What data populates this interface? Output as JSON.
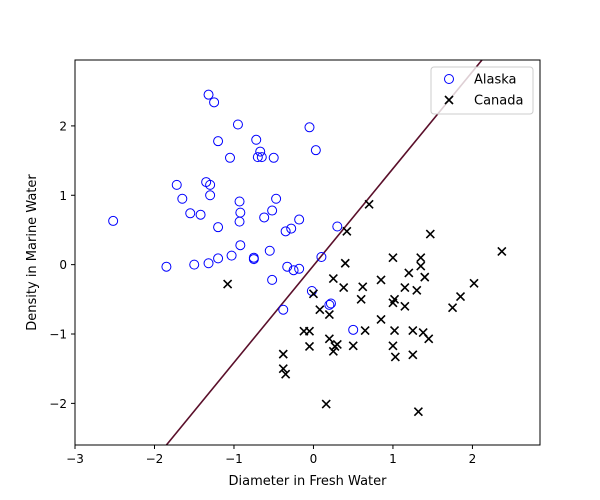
{
  "chart_data": {
    "type": "scatter",
    "xlabel": "Diameter in Fresh Water",
    "ylabel": "Density in Marine Water",
    "xlim": [
      -3,
      2.85
    ],
    "ylim": [
      -2.6,
      2.95
    ],
    "xticks": [
      -3,
      -2,
      -1,
      0,
      1,
      2
    ],
    "yticks": [
      -2,
      -1,
      0,
      1,
      2
    ],
    "grid": false,
    "legend_position": "top-right",
    "decision_boundary": {
      "points": [
        [
          -1.85,
          -2.6
        ],
        [
          2.12,
          2.95
        ]
      ],
      "color": "#5a0f2a"
    },
    "series": [
      {
        "name": "Alaska",
        "marker": "open-circle",
        "color": "#0000ff",
        "points": [
          [
            -1.32,
            2.45
          ],
          [
            -1.25,
            2.34
          ],
          [
            -0.95,
            2.02
          ],
          [
            -0.05,
            1.98
          ],
          [
            -1.2,
            1.78
          ],
          [
            -0.72,
            1.8
          ],
          [
            -0.67,
            1.63
          ],
          [
            -0.7,
            1.55
          ],
          [
            -0.65,
            1.55
          ],
          [
            -0.5,
            1.54
          ],
          [
            0.03,
            1.65
          ],
          [
            -1.05,
            1.54
          ],
          [
            -1.72,
            1.15
          ],
          [
            -1.35,
            1.19
          ],
          [
            -1.3,
            1.15
          ],
          [
            -1.65,
            0.95
          ],
          [
            -1.3,
            1.0
          ],
          [
            -0.47,
            0.95
          ],
          [
            -0.93,
            0.91
          ],
          [
            -0.92,
            0.75
          ],
          [
            -0.52,
            0.78
          ],
          [
            -1.55,
            0.74
          ],
          [
            -1.42,
            0.72
          ],
          [
            -0.62,
            0.68
          ],
          [
            -0.93,
            0.62
          ],
          [
            -0.18,
            0.65
          ],
          [
            -1.2,
            0.54
          ],
          [
            -0.28,
            0.52
          ],
          [
            -0.35,
            0.48
          ],
          [
            0.3,
            0.55
          ],
          [
            -2.52,
            0.63
          ],
          [
            -0.92,
            0.28
          ],
          [
            -0.55,
            0.2
          ],
          [
            -1.03,
            0.13
          ],
          [
            -1.2,
            0.09
          ],
          [
            -0.75,
            0.1
          ],
          [
            -0.75,
            0.08
          ],
          [
            0.1,
            0.11
          ],
          [
            -1.85,
            -0.03
          ],
          [
            -1.5,
            0.0
          ],
          [
            -1.32,
            0.02
          ],
          [
            -0.33,
            -0.03
          ],
          [
            -0.18,
            -0.06
          ],
          [
            -0.25,
            -0.08
          ],
          [
            -0.52,
            -0.22
          ],
          [
            -0.02,
            -0.38
          ],
          [
            0.22,
            -0.56
          ],
          [
            0.2,
            -0.58
          ],
          [
            -0.38,
            -0.65
          ],
          [
            0.5,
            -0.94
          ]
        ]
      },
      {
        "name": "Canada",
        "marker": "x",
        "color": "#000000",
        "points": [
          [
            0.7,
            0.87
          ],
          [
            0.42,
            0.48
          ],
          [
            1.47,
            0.44
          ],
          [
            2.37,
            0.19
          ],
          [
            1.0,
            0.1
          ],
          [
            1.35,
            0.1
          ],
          [
            0.4,
            0.02
          ],
          [
            1.35,
            -0.02
          ],
          [
            1.2,
            -0.12
          ],
          [
            1.4,
            -0.18
          ],
          [
            0.25,
            -0.2
          ],
          [
            0.85,
            -0.22
          ],
          [
            0.62,
            -0.32
          ],
          [
            2.02,
            -0.27
          ],
          [
            0.38,
            -0.33
          ],
          [
            1.15,
            -0.33
          ],
          [
            1.3,
            -0.37
          ],
          [
            -1.08,
            -0.28
          ],
          [
            0.0,
            -0.42
          ],
          [
            0.6,
            -0.5
          ],
          [
            1.02,
            -0.5
          ],
          [
            1.85,
            -0.46
          ],
          [
            1.0,
            -0.55
          ],
          [
            1.15,
            -0.6
          ],
          [
            1.75,
            -0.62
          ],
          [
            0.08,
            -0.65
          ],
          [
            0.2,
            -0.72
          ],
          [
            0.85,
            -0.79
          ],
          [
            -0.12,
            -0.96
          ],
          [
            -0.05,
            -0.96
          ],
          [
            0.65,
            -0.95
          ],
          [
            1.02,
            -0.95
          ],
          [
            1.25,
            -0.95
          ],
          [
            1.38,
            -0.98
          ],
          [
            1.45,
            -1.07
          ],
          [
            0.2,
            -1.07
          ],
          [
            0.3,
            -1.15
          ],
          [
            0.27,
            -1.18
          ],
          [
            0.5,
            -1.17
          ],
          [
            1.0,
            -1.17
          ],
          [
            -0.05,
            -1.18
          ],
          [
            0.25,
            -1.25
          ],
          [
            1.25,
            -1.3
          ],
          [
            1.03,
            -1.33
          ],
          [
            -0.38,
            -1.29
          ],
          [
            -0.38,
            -1.5
          ],
          [
            -0.35,
            -1.58
          ],
          [
            0.16,
            -2.01
          ],
          [
            1.32,
            -2.12
          ]
        ]
      }
    ]
  }
}
